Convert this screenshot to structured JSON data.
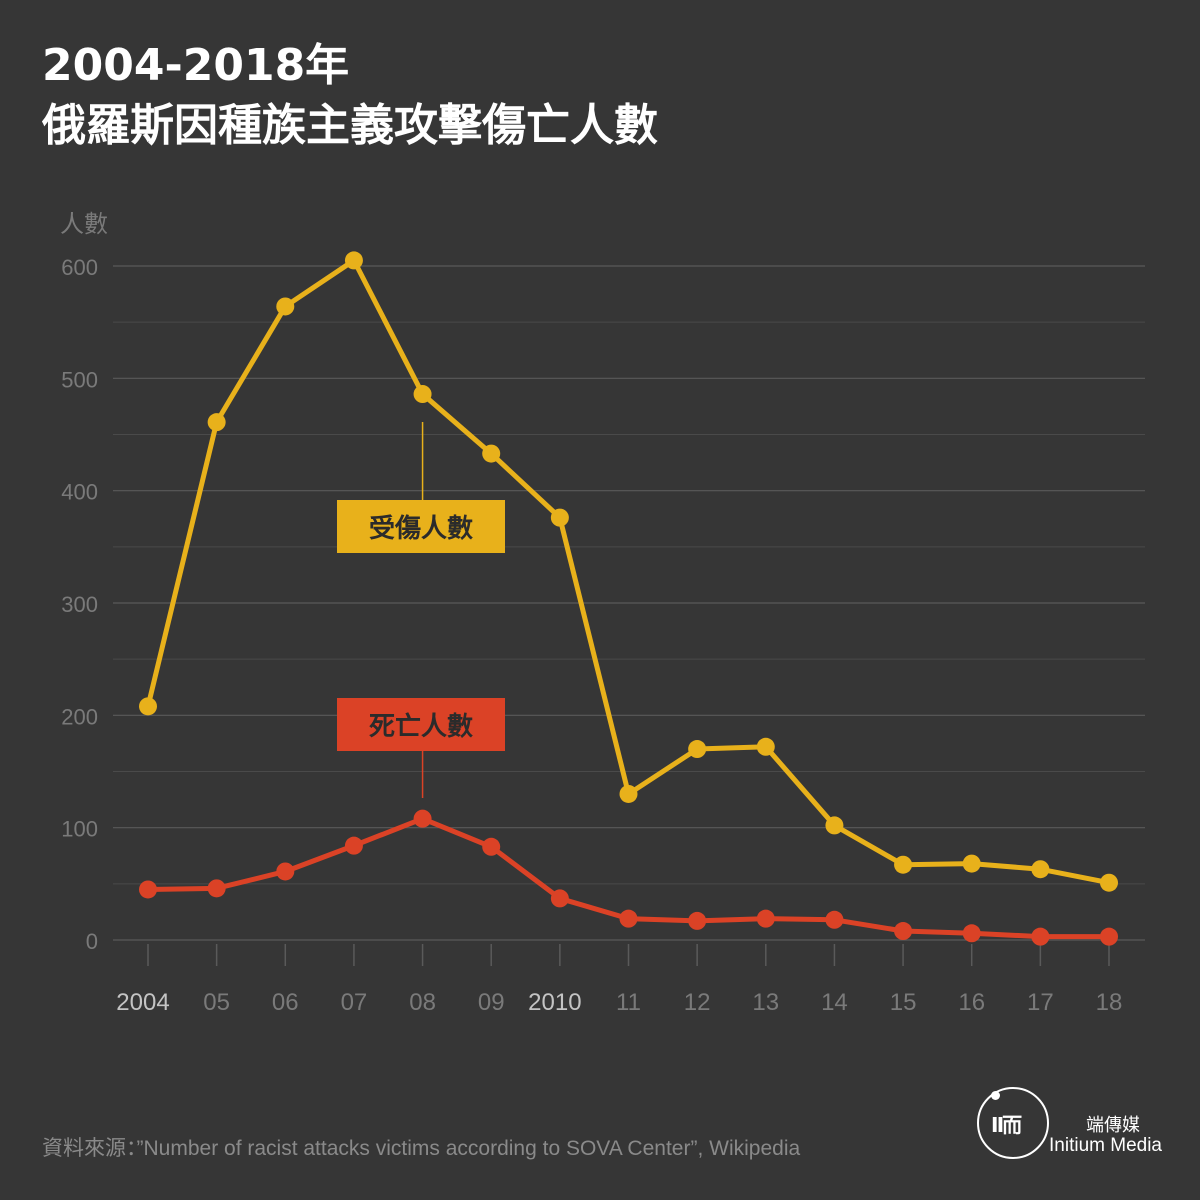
{
  "title": {
    "line1": "2004-2018年",
    "line2": "俄羅斯因種族主義攻擊傷亡人數"
  },
  "source": "資料來源：”Number of racist attacks victims according to SOVA Center”, Wikipedia",
  "logo": {
    "glyph": "Ⅱ而",
    "name_cn": "端傳媒",
    "name_en": "Initium Media"
  },
  "colors": {
    "background": "#363636",
    "injured": "#e8b11b",
    "deaths": "#db4226",
    "grid": "#5a5a5a",
    "tick_text": "#7a7a7a",
    "year_text": "#c4c4c4"
  },
  "chart_data": {
    "type": "line",
    "ylabel": "人數",
    "ylim": [
      0,
      600
    ],
    "yticks": [
      0,
      100,
      200,
      300,
      400,
      500,
      600
    ],
    "grid": true,
    "x": [
      2004,
      2005,
      2006,
      2007,
      2008,
      2009,
      2010,
      2011,
      2012,
      2013,
      2014,
      2015,
      2016,
      2017,
      2018
    ],
    "xtick_labels": [
      "2004",
      "05",
      "06",
      "07",
      "08",
      "09",
      "2010",
      "11",
      "12",
      "13",
      "14",
      "15",
      "16",
      "17",
      "18"
    ],
    "series": [
      {
        "name": "受傷人數",
        "color": "#e8b11b",
        "values": [
          208,
          461,
          564,
          605,
          486,
          433,
          376,
          130,
          170,
          172,
          102,
          67,
          68,
          63,
          51
        ]
      },
      {
        "name": "死亡人數",
        "color": "#db4226",
        "values": [
          45,
          46,
          61,
          84,
          108,
          83,
          37,
          19,
          17,
          19,
          18,
          8,
          6,
          3,
          3
        ]
      }
    ]
  }
}
